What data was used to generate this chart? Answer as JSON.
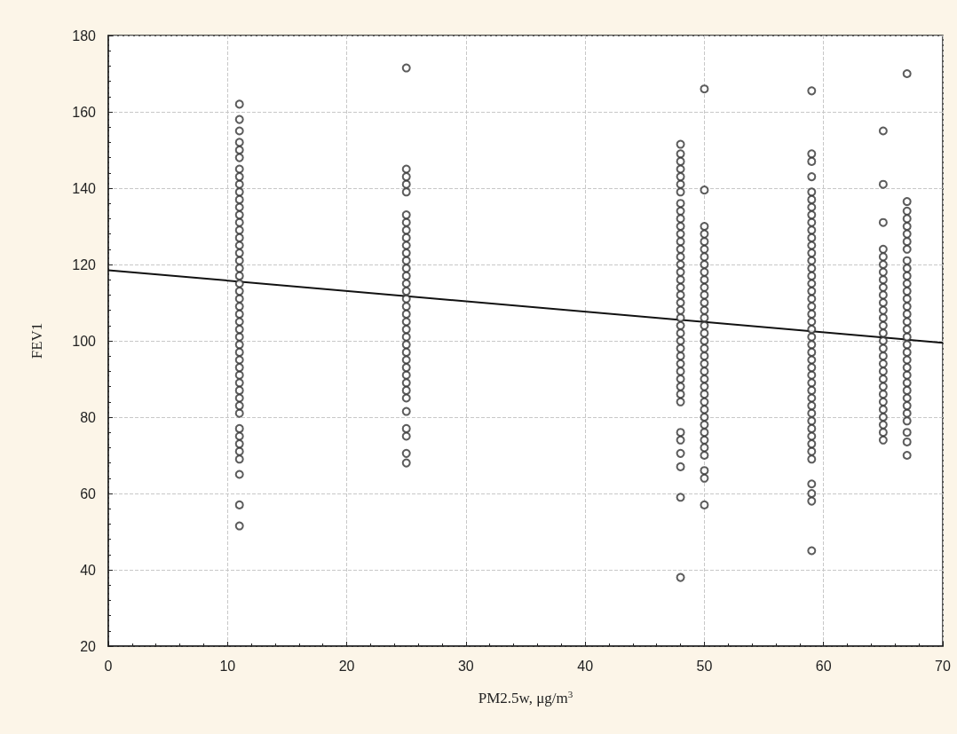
{
  "chart_data": {
    "type": "scatter",
    "xlabel": "PM2.5w, μg/m$^{3}$",
    "ylabel": "FEV1",
    "xlim": [
      0,
      70
    ],
    "xticks": [
      0,
      10,
      20,
      30,
      40,
      50,
      60,
      70
    ],
    "ylim": [
      20,
      180
    ],
    "yticks": [
      20,
      40,
      60,
      80,
      100,
      120,
      140,
      160,
      180
    ],
    "grid": true,
    "marker": "circle",
    "series": [
      {
        "color": "#333333",
        "x": [
          11,
          11,
          11,
          11,
          11,
          11,
          11,
          11,
          11,
          11,
          11,
          11,
          11,
          11,
          11,
          11,
          11,
          11,
          11,
          11,
          11,
          11,
          11,
          11,
          11,
          11,
          11,
          11,
          11,
          11,
          11,
          11,
          11,
          11,
          11,
          11,
          11,
          11,
          11,
          11,
          11,
          11,
          11,
          11,
          11,
          11,
          11
        ],
        "values": [
          162,
          158,
          155,
          152,
          150,
          148,
          145,
          143,
          141,
          139,
          137,
          135,
          133,
          131,
          129,
          127,
          125,
          123,
          121,
          119,
          117,
          115,
          113,
          111,
          109,
          107,
          105,
          103,
          101,
          99,
          97,
          95,
          93,
          91,
          89,
          87,
          85,
          83,
          81,
          77,
          75,
          73,
          71,
          69,
          65,
          57,
          51.5
        ]
      },
      {
        "color": "#333333",
        "x": [
          25,
          25,
          25,
          25,
          25,
          25,
          25,
          25,
          25,
          25,
          25,
          25,
          25,
          25,
          25,
          25,
          25,
          25,
          25,
          25,
          25,
          25,
          25,
          25,
          25,
          25,
          25,
          25,
          25,
          25,
          25,
          25,
          25,
          25,
          25
        ],
        "values": [
          171.5,
          145,
          143,
          141,
          139,
          133,
          131,
          129,
          127,
          125,
          123,
          121,
          119,
          117,
          115,
          113,
          111,
          109,
          107,
          105,
          103,
          101,
          99,
          97,
          95,
          93,
          91,
          89,
          87,
          85,
          81.5,
          77,
          75,
          70.5,
          68
        ]
      },
      {
        "color": "#333333",
        "x": [
          48,
          48,
          48,
          48,
          48,
          48,
          48,
          48,
          48,
          48,
          48,
          48,
          48,
          48,
          48,
          48,
          48,
          48,
          48,
          48,
          48,
          48,
          48,
          48,
          48,
          48,
          48,
          48,
          48,
          48,
          48,
          48,
          48,
          48,
          48,
          48,
          48,
          48,
          48,
          48
        ],
        "values": [
          151.5,
          149,
          147,
          145,
          143,
          141,
          139,
          136,
          134,
          132,
          130,
          128,
          126,
          124,
          122,
          120,
          118,
          116,
          114,
          112,
          110,
          108,
          106,
          104,
          102,
          100,
          98,
          96,
          94,
          92,
          90,
          88,
          86,
          84,
          76,
          74,
          70.5,
          67,
          59,
          38
        ]
      },
      {
        "color": "#333333",
        "x": [
          50,
          50,
          50,
          50,
          50,
          50,
          50,
          50,
          50,
          50,
          50,
          50,
          50,
          50,
          50,
          50,
          50,
          50,
          50,
          50,
          50,
          50,
          50,
          50,
          50,
          50,
          50,
          50,
          50,
          50,
          50,
          50,
          50,
          50,
          50,
          50
        ],
        "values": [
          166,
          139.5,
          130,
          128,
          126,
          124,
          122,
          120,
          118,
          116,
          114,
          112,
          110,
          108,
          106,
          104,
          102,
          100,
          98,
          96,
          94,
          92,
          90,
          88,
          86,
          84,
          82,
          80,
          78,
          76,
          74,
          72,
          70,
          66,
          64,
          57
        ]
      },
      {
        "color": "#333333",
        "x": [
          59,
          59,
          59,
          59,
          59,
          59,
          59,
          59,
          59,
          59,
          59,
          59,
          59,
          59,
          59,
          59,
          59,
          59,
          59,
          59,
          59,
          59,
          59,
          59,
          59,
          59,
          59,
          59,
          59,
          59,
          59,
          59,
          59,
          59,
          59,
          59,
          59,
          59,
          59,
          59,
          59,
          59,
          59,
          59
        ],
        "values": [
          165.5,
          149,
          147,
          143,
          139,
          137,
          135,
          133,
          131,
          129,
          127,
          125,
          123,
          121,
          119,
          117,
          115,
          113,
          111,
          109,
          107,
          105,
          103,
          101,
          99,
          97,
          95,
          93,
          91,
          89,
          87,
          85,
          83,
          81,
          79,
          77,
          75,
          73,
          71,
          69,
          62.5,
          60,
          58,
          45
        ]
      },
      {
        "color": "#333333",
        "x": [
          65,
          65,
          65,
          65,
          65,
          65,
          65,
          65,
          65,
          65,
          65,
          65,
          65,
          65,
          65,
          65,
          65,
          65,
          65,
          65,
          65,
          65,
          65,
          65,
          65,
          65,
          65,
          65,
          65
        ],
        "values": [
          155,
          141,
          131,
          124,
          122,
          120,
          118,
          116,
          114,
          112,
          110,
          108,
          106,
          104,
          102,
          100,
          98,
          96,
          94,
          92,
          90,
          88,
          86,
          84,
          82,
          80,
          78,
          76,
          74
        ]
      },
      {
        "color": "#333333",
        "x": [
          67,
          67,
          67,
          67,
          67,
          67,
          67,
          67,
          67,
          67,
          67,
          67,
          67,
          67,
          67,
          67,
          67,
          67,
          67,
          67,
          67,
          67,
          67,
          67,
          67,
          67,
          67,
          67,
          67,
          67,
          67,
          67,
          67
        ],
        "values": [
          170,
          136.5,
          134,
          132,
          130,
          128,
          126,
          124,
          121,
          119,
          117,
          115,
          113,
          111,
          109,
          107,
          105,
          103,
          101,
          99,
          97,
          95,
          93,
          91,
          89,
          87,
          85,
          83,
          81,
          79,
          76,
          73.5,
          70
        ]
      },
      {
        "type": "line",
        "color": "#111111",
        "x": [
          0,
          70
        ],
        "values": [
          118.5,
          99.5
        ],
        "marker": "none",
        "line_style": "solid"
      }
    ]
  }
}
